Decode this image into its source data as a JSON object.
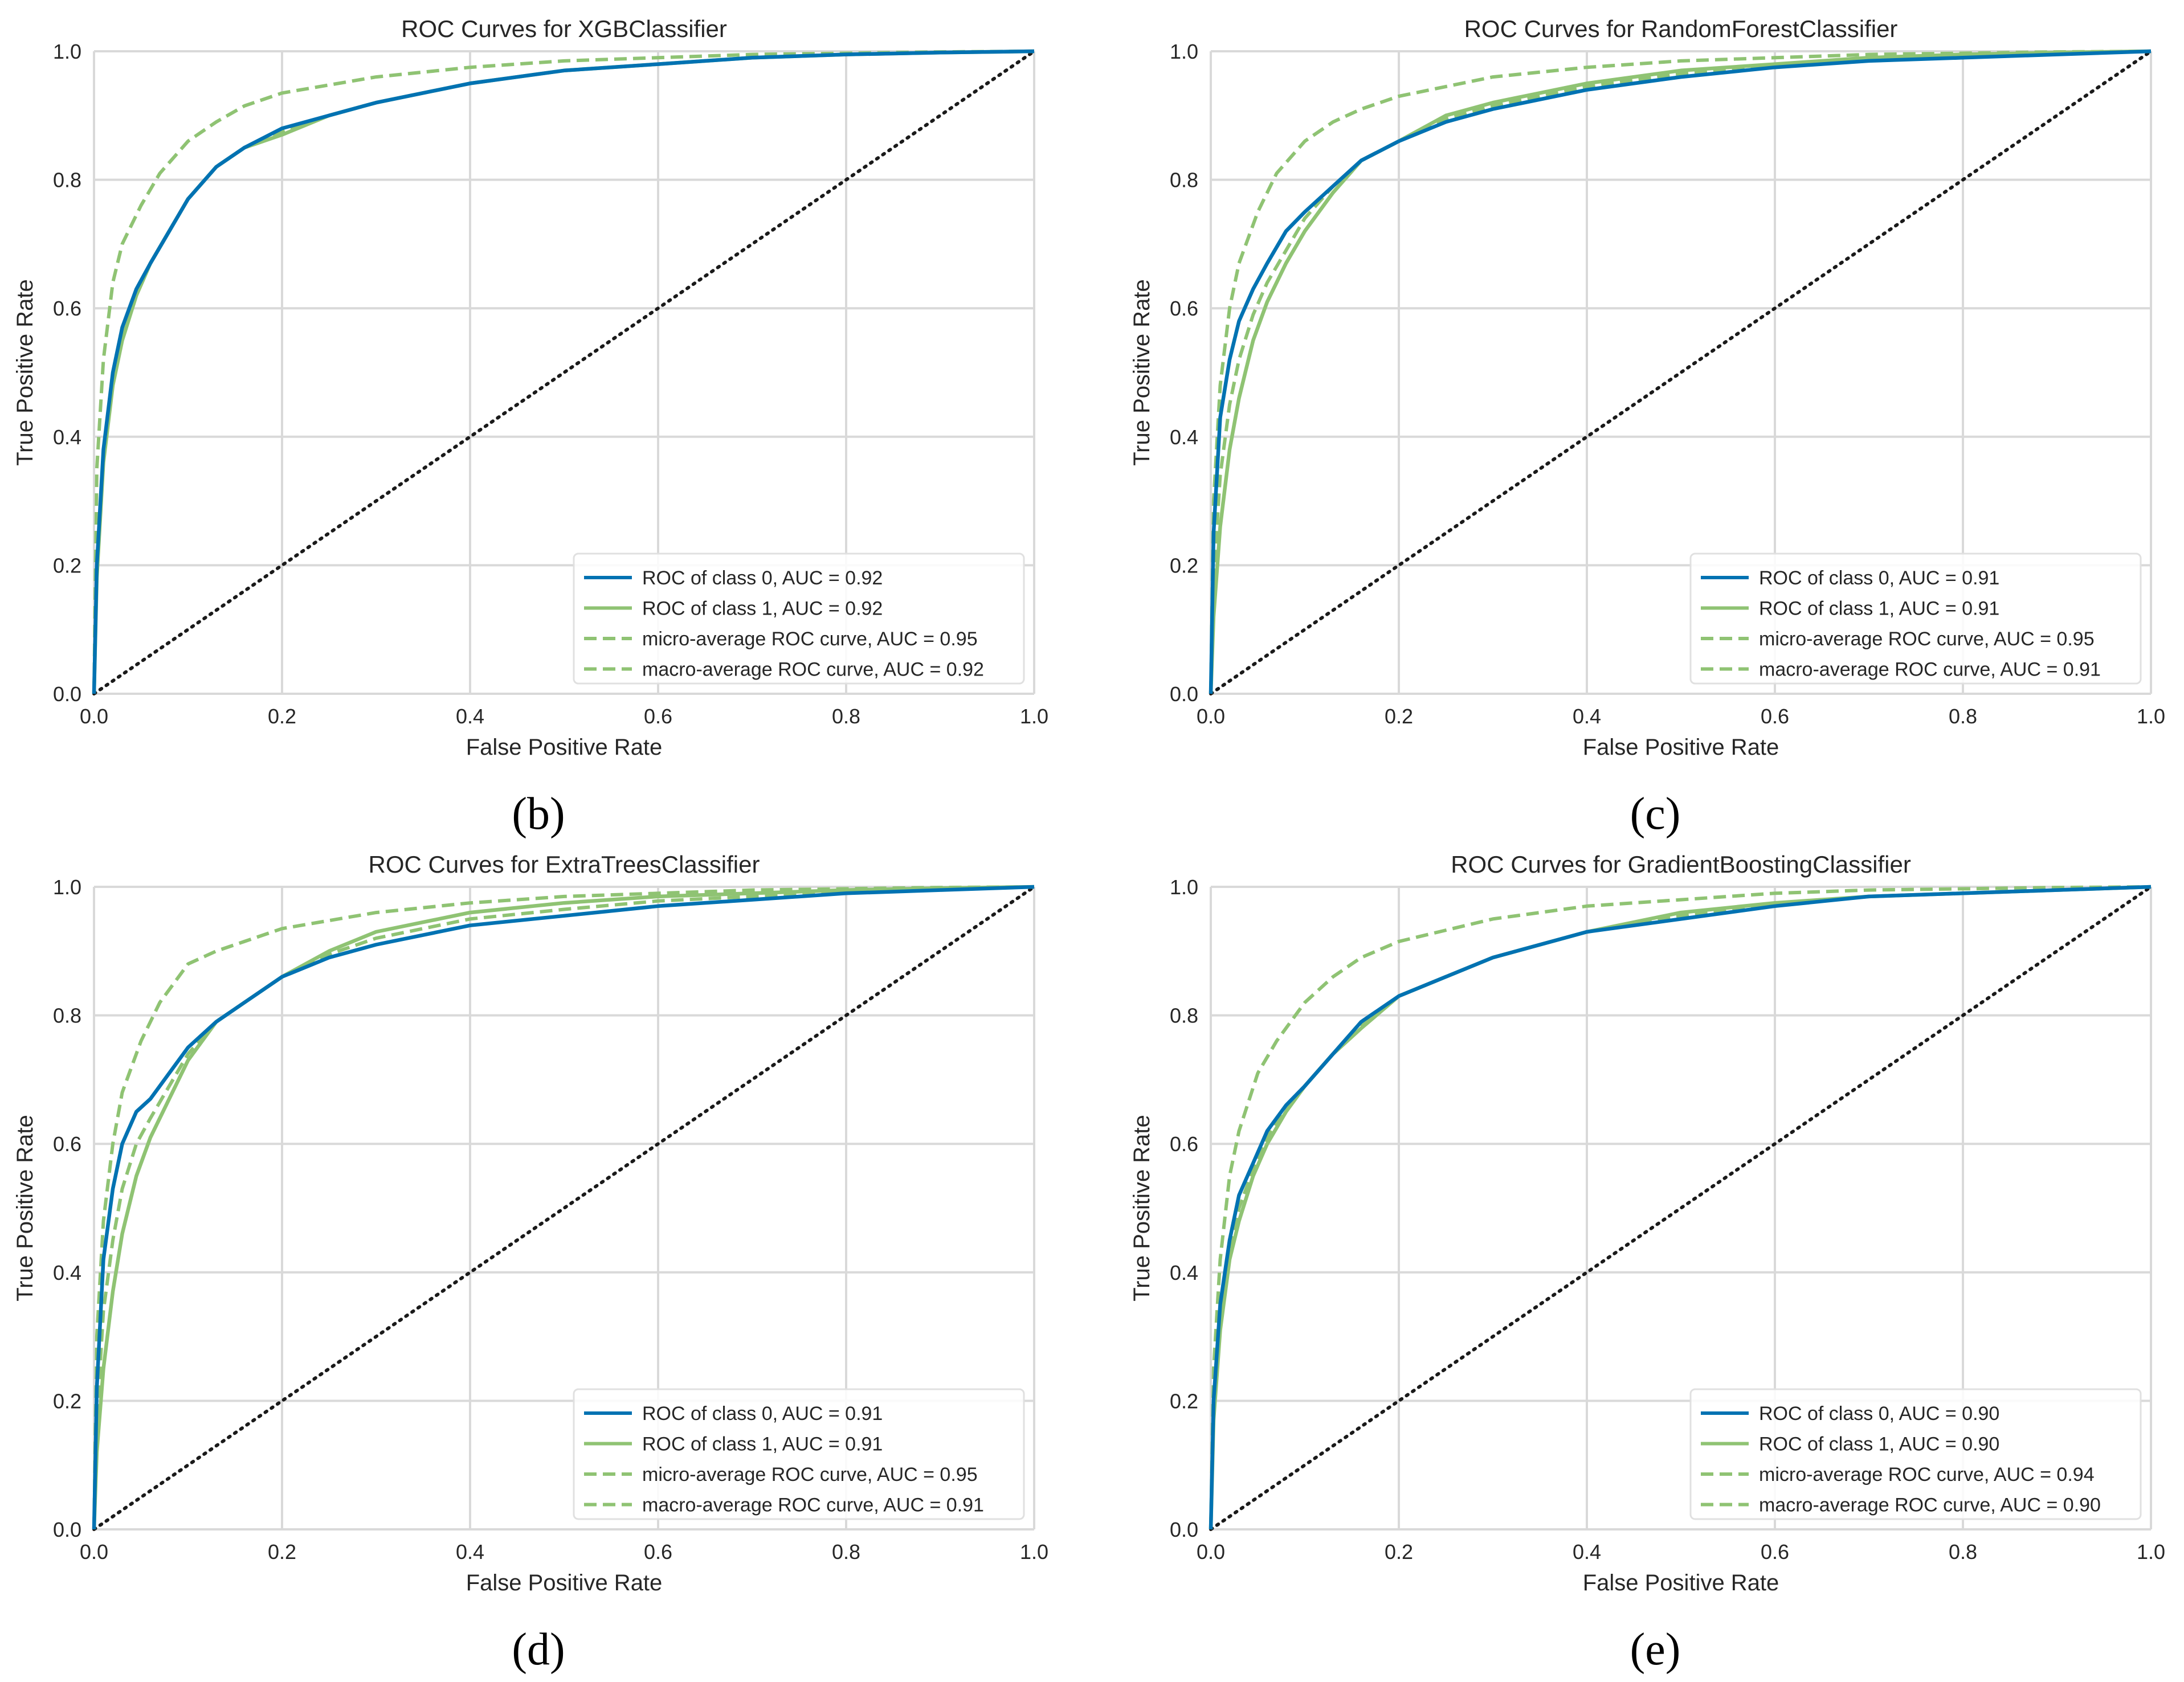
{
  "figure": {
    "background": "#ffffff"
  },
  "colors": {
    "class0": "#0072b2",
    "class1": "#8fc373",
    "average": "#8fc373",
    "diagonal": "#1a1a1a",
    "grid": "#d9d9d9"
  },
  "chart_data": [
    {
      "panel": "(b)",
      "type": "line",
      "title": "ROC Curves for XGBClassifier",
      "xlabel": "False Positive Rate",
      "ylabel": "True Positive Rate",
      "xlim": [
        0,
        1
      ],
      "ylim": [
        0,
        1
      ],
      "xticks": [
        "0.0",
        "0.2",
        "0.4",
        "0.6",
        "0.8",
        "1.0"
      ],
      "yticks": [
        "0.0",
        "0.2",
        "0.4",
        "0.6",
        "0.8",
        "1.0"
      ],
      "grid": true,
      "legend_position": "lower-right",
      "series": [
        {
          "name": "ROC of class 0, AUC = 0.92",
          "style": "solid",
          "color": "#0072b2",
          "x": [
            0,
            0.003,
            0.01,
            0.02,
            0.03,
            0.045,
            0.06,
            0.08,
            0.1,
            0.13,
            0.16,
            0.2,
            0.25,
            0.3,
            0.4,
            0.5,
            0.6,
            0.7,
            0.8,
            0.9,
            1.0
          ],
          "y": [
            0,
            0.2,
            0.38,
            0.5,
            0.57,
            0.63,
            0.67,
            0.72,
            0.77,
            0.82,
            0.85,
            0.88,
            0.9,
            0.92,
            0.95,
            0.97,
            0.98,
            0.99,
            0.995,
            0.998,
            1.0
          ]
        },
        {
          "name": "ROC of class 1, AUC = 0.92",
          "style": "solid",
          "color": "#8fc373",
          "x": [
            0,
            0.003,
            0.01,
            0.02,
            0.03,
            0.045,
            0.06,
            0.08,
            0.1,
            0.13,
            0.16,
            0.2,
            0.25,
            0.3,
            0.4,
            0.5,
            0.6,
            0.7,
            0.8,
            0.9,
            1.0
          ],
          "y": [
            0,
            0.18,
            0.36,
            0.48,
            0.55,
            0.62,
            0.67,
            0.72,
            0.77,
            0.82,
            0.85,
            0.87,
            0.9,
            0.92,
            0.95,
            0.97,
            0.98,
            0.99,
            0.995,
            0.998,
            1.0
          ]
        },
        {
          "name": "micro-average ROC curve, AUC = 0.95",
          "style": "dashed",
          "color": "#8fc373",
          "x": [
            0,
            0.003,
            0.01,
            0.02,
            0.03,
            0.05,
            0.07,
            0.1,
            0.13,
            0.16,
            0.2,
            0.3,
            0.4,
            0.5,
            0.6,
            0.7,
            0.8,
            0.9,
            1.0
          ],
          "y": [
            0,
            0.35,
            0.52,
            0.64,
            0.7,
            0.76,
            0.81,
            0.86,
            0.89,
            0.915,
            0.935,
            0.96,
            0.975,
            0.985,
            0.99,
            0.995,
            0.997,
            0.999,
            1.0
          ]
        },
        {
          "name": "macro-average ROC curve, AUC = 0.92",
          "style": "dashed",
          "color": "#8fc373",
          "x": [
            0,
            0.003,
            0.01,
            0.02,
            0.03,
            0.045,
            0.06,
            0.08,
            0.1,
            0.13,
            0.16,
            0.2,
            0.25,
            0.3,
            0.4,
            0.5,
            0.6,
            0.7,
            0.8,
            0.9,
            1.0
          ],
          "y": [
            0,
            0.19,
            0.37,
            0.49,
            0.56,
            0.625,
            0.67,
            0.72,
            0.77,
            0.82,
            0.85,
            0.875,
            0.9,
            0.92,
            0.95,
            0.97,
            0.98,
            0.99,
            0.995,
            0.998,
            1.0
          ]
        }
      ]
    },
    {
      "panel": "(c)",
      "type": "line",
      "title": "ROC Curves for RandomForestClassifier",
      "xlabel": "False Positive Rate",
      "ylabel": "True Positive Rate",
      "xlim": [
        0,
        1
      ],
      "ylim": [
        0,
        1
      ],
      "xticks": [
        "0.0",
        "0.2",
        "0.4",
        "0.6",
        "0.8",
        "1.0"
      ],
      "yticks": [
        "0.0",
        "0.2",
        "0.4",
        "0.6",
        "0.8",
        "1.0"
      ],
      "grid": true,
      "legend_position": "lower-right",
      "series": [
        {
          "name": "ROC of class 0, AUC = 0.91",
          "style": "solid",
          "color": "#0072b2",
          "x": [
            0,
            0.003,
            0.01,
            0.02,
            0.03,
            0.045,
            0.06,
            0.08,
            0.1,
            0.13,
            0.16,
            0.2,
            0.25,
            0.3,
            0.4,
            0.5,
            0.6,
            0.7,
            0.8,
            0.9,
            1.0
          ],
          "y": [
            0,
            0.25,
            0.43,
            0.52,
            0.58,
            0.63,
            0.67,
            0.72,
            0.75,
            0.79,
            0.83,
            0.86,
            0.89,
            0.91,
            0.94,
            0.96,
            0.975,
            0.985,
            0.99,
            0.995,
            1.0
          ]
        },
        {
          "name": "ROC of class 1, AUC = 0.91",
          "style": "solid",
          "color": "#8fc373",
          "x": [
            0,
            0.003,
            0.01,
            0.02,
            0.03,
            0.045,
            0.06,
            0.08,
            0.1,
            0.13,
            0.16,
            0.2,
            0.25,
            0.3,
            0.4,
            0.5,
            0.6,
            0.7,
            0.8,
            0.9,
            1.0
          ],
          "y": [
            0,
            0.12,
            0.26,
            0.38,
            0.46,
            0.55,
            0.61,
            0.67,
            0.72,
            0.78,
            0.83,
            0.86,
            0.9,
            0.92,
            0.95,
            0.97,
            0.98,
            0.99,
            0.995,
            0.998,
            1.0
          ]
        },
        {
          "name": "micro-average ROC curve, AUC = 0.95",
          "style": "dashed",
          "color": "#8fc373",
          "x": [
            0,
            0.003,
            0.01,
            0.02,
            0.03,
            0.05,
            0.07,
            0.1,
            0.13,
            0.16,
            0.2,
            0.3,
            0.4,
            0.5,
            0.6,
            0.7,
            0.8,
            0.9,
            1.0
          ],
          "y": [
            0,
            0.3,
            0.48,
            0.6,
            0.67,
            0.75,
            0.81,
            0.86,
            0.89,
            0.91,
            0.93,
            0.96,
            0.975,
            0.985,
            0.99,
            0.995,
            0.997,
            0.999,
            1.0
          ]
        },
        {
          "name": "macro-average ROC curve, AUC = 0.91",
          "style": "dashed",
          "color": "#8fc373",
          "x": [
            0,
            0.003,
            0.01,
            0.02,
            0.03,
            0.045,
            0.06,
            0.08,
            0.1,
            0.13,
            0.16,
            0.2,
            0.25,
            0.3,
            0.4,
            0.5,
            0.6,
            0.7,
            0.8,
            0.9,
            1.0
          ],
          "y": [
            0,
            0.18,
            0.34,
            0.45,
            0.52,
            0.59,
            0.64,
            0.69,
            0.74,
            0.79,
            0.83,
            0.86,
            0.895,
            0.915,
            0.945,
            0.965,
            0.978,
            0.988,
            0.993,
            0.997,
            1.0
          ]
        }
      ]
    },
    {
      "panel": "(d)",
      "type": "line",
      "title": "ROC Curves for ExtraTreesClassifier",
      "xlabel": "False Positive Rate",
      "ylabel": "True Positive Rate",
      "xlim": [
        0,
        1
      ],
      "ylim": [
        0,
        1
      ],
      "xticks": [
        "0.0",
        "0.2",
        "0.4",
        "0.6",
        "0.8",
        "1.0"
      ],
      "yticks": [
        "0.0",
        "0.2",
        "0.4",
        "0.6",
        "0.8",
        "1.0"
      ],
      "grid": true,
      "legend_position": "lower-right",
      "series": [
        {
          "name": "ROC of class 0, AUC = 0.91",
          "style": "solid",
          "color": "#0072b2",
          "x": [
            0,
            0.003,
            0.01,
            0.02,
            0.03,
            0.045,
            0.06,
            0.08,
            0.1,
            0.13,
            0.16,
            0.2,
            0.25,
            0.3,
            0.4,
            0.5,
            0.6,
            0.7,
            0.8,
            0.9,
            1.0
          ],
          "y": [
            0,
            0.22,
            0.42,
            0.53,
            0.6,
            0.65,
            0.67,
            0.71,
            0.75,
            0.79,
            0.82,
            0.86,
            0.89,
            0.91,
            0.94,
            0.955,
            0.97,
            0.98,
            0.99,
            0.995,
            1.0
          ]
        },
        {
          "name": "ROC of class 1, AUC = 0.91",
          "style": "solid",
          "color": "#8fc373",
          "x": [
            0,
            0.003,
            0.01,
            0.02,
            0.03,
            0.045,
            0.06,
            0.08,
            0.1,
            0.13,
            0.16,
            0.2,
            0.25,
            0.3,
            0.4,
            0.5,
            0.6,
            0.7,
            0.8,
            0.9,
            1.0
          ],
          "y": [
            0,
            0.12,
            0.25,
            0.37,
            0.46,
            0.55,
            0.61,
            0.67,
            0.73,
            0.79,
            0.82,
            0.86,
            0.9,
            0.93,
            0.96,
            0.975,
            0.985,
            0.99,
            0.995,
            0.998,
            1.0
          ]
        },
        {
          "name": "micro-average ROC curve, AUC = 0.95",
          "style": "dashed",
          "color": "#8fc373",
          "x": [
            0,
            0.003,
            0.01,
            0.02,
            0.03,
            0.05,
            0.07,
            0.1,
            0.13,
            0.16,
            0.2,
            0.3,
            0.4,
            0.5,
            0.6,
            0.7,
            0.8,
            0.9,
            1.0
          ],
          "y": [
            0,
            0.3,
            0.48,
            0.6,
            0.68,
            0.76,
            0.82,
            0.88,
            0.9,
            0.915,
            0.935,
            0.96,
            0.975,
            0.985,
            0.99,
            0.995,
            0.997,
            0.999,
            1.0
          ]
        },
        {
          "name": "macro-average ROC curve, AUC = 0.91",
          "style": "dashed",
          "color": "#8fc373",
          "x": [
            0,
            0.003,
            0.01,
            0.02,
            0.03,
            0.045,
            0.06,
            0.08,
            0.1,
            0.13,
            0.16,
            0.2,
            0.25,
            0.3,
            0.4,
            0.5,
            0.6,
            0.7,
            0.8,
            0.9,
            1.0
          ],
          "y": [
            0,
            0.17,
            0.34,
            0.45,
            0.53,
            0.6,
            0.64,
            0.69,
            0.74,
            0.79,
            0.82,
            0.86,
            0.895,
            0.92,
            0.95,
            0.965,
            0.978,
            0.985,
            0.992,
            0.996,
            1.0
          ]
        }
      ]
    },
    {
      "panel": "(e)",
      "type": "line",
      "title": "ROC Curves for GradientBoostingClassifier",
      "xlabel": "False Positive Rate",
      "ylabel": "True Positive Rate",
      "xlim": [
        0,
        1
      ],
      "ylim": [
        0,
        1
      ],
      "xticks": [
        "0.0",
        "0.2",
        "0.4",
        "0.6",
        "0.8",
        "1.0"
      ],
      "yticks": [
        "0.0",
        "0.2",
        "0.4",
        "0.6",
        "0.8",
        "1.0"
      ],
      "grid": true,
      "legend_position": "lower-right",
      "series": [
        {
          "name": "ROC of class 0, AUC = 0.90",
          "style": "solid",
          "color": "#0072b2",
          "x": [
            0,
            0.003,
            0.01,
            0.02,
            0.03,
            0.045,
            0.06,
            0.08,
            0.1,
            0.13,
            0.16,
            0.2,
            0.25,
            0.3,
            0.4,
            0.5,
            0.6,
            0.7,
            0.8,
            0.9,
            1.0
          ],
          "y": [
            0,
            0.2,
            0.35,
            0.45,
            0.52,
            0.57,
            0.62,
            0.66,
            0.69,
            0.74,
            0.79,
            0.83,
            0.86,
            0.89,
            0.93,
            0.95,
            0.97,
            0.985,
            0.99,
            0.995,
            1.0
          ]
        },
        {
          "name": "ROC of class 1, AUC = 0.90",
          "style": "solid",
          "color": "#8fc373",
          "x": [
            0,
            0.003,
            0.01,
            0.02,
            0.03,
            0.045,
            0.06,
            0.08,
            0.1,
            0.13,
            0.16,
            0.2,
            0.25,
            0.3,
            0.4,
            0.5,
            0.6,
            0.7,
            0.8,
            0.9,
            1.0
          ],
          "y": [
            0,
            0.17,
            0.31,
            0.42,
            0.48,
            0.55,
            0.6,
            0.65,
            0.69,
            0.74,
            0.78,
            0.83,
            0.86,
            0.89,
            0.93,
            0.96,
            0.975,
            0.985,
            0.99,
            0.995,
            1.0
          ]
        },
        {
          "name": "micro-average ROC curve, AUC = 0.94",
          "style": "dashed",
          "color": "#8fc373",
          "x": [
            0,
            0.003,
            0.01,
            0.02,
            0.03,
            0.05,
            0.07,
            0.1,
            0.13,
            0.16,
            0.2,
            0.3,
            0.4,
            0.5,
            0.6,
            0.7,
            0.8,
            0.9,
            1.0
          ],
          "y": [
            0,
            0.25,
            0.42,
            0.55,
            0.62,
            0.71,
            0.76,
            0.82,
            0.86,
            0.89,
            0.915,
            0.95,
            0.97,
            0.98,
            0.99,
            0.995,
            0.997,
            0.999,
            1.0
          ]
        },
        {
          "name": "macro-average ROC curve, AUC = 0.90",
          "style": "dashed",
          "color": "#8fc373",
          "x": [
            0,
            0.003,
            0.01,
            0.02,
            0.03,
            0.045,
            0.06,
            0.08,
            0.1,
            0.13,
            0.16,
            0.2,
            0.25,
            0.3,
            0.4,
            0.5,
            0.6,
            0.7,
            0.8,
            0.9,
            1.0
          ],
          "y": [
            0,
            0.185,
            0.33,
            0.435,
            0.5,
            0.56,
            0.61,
            0.655,
            0.69,
            0.74,
            0.785,
            0.83,
            0.86,
            0.89,
            0.93,
            0.955,
            0.972,
            0.985,
            0.99,
            0.995,
            1.0
          ]
        }
      ]
    }
  ]
}
